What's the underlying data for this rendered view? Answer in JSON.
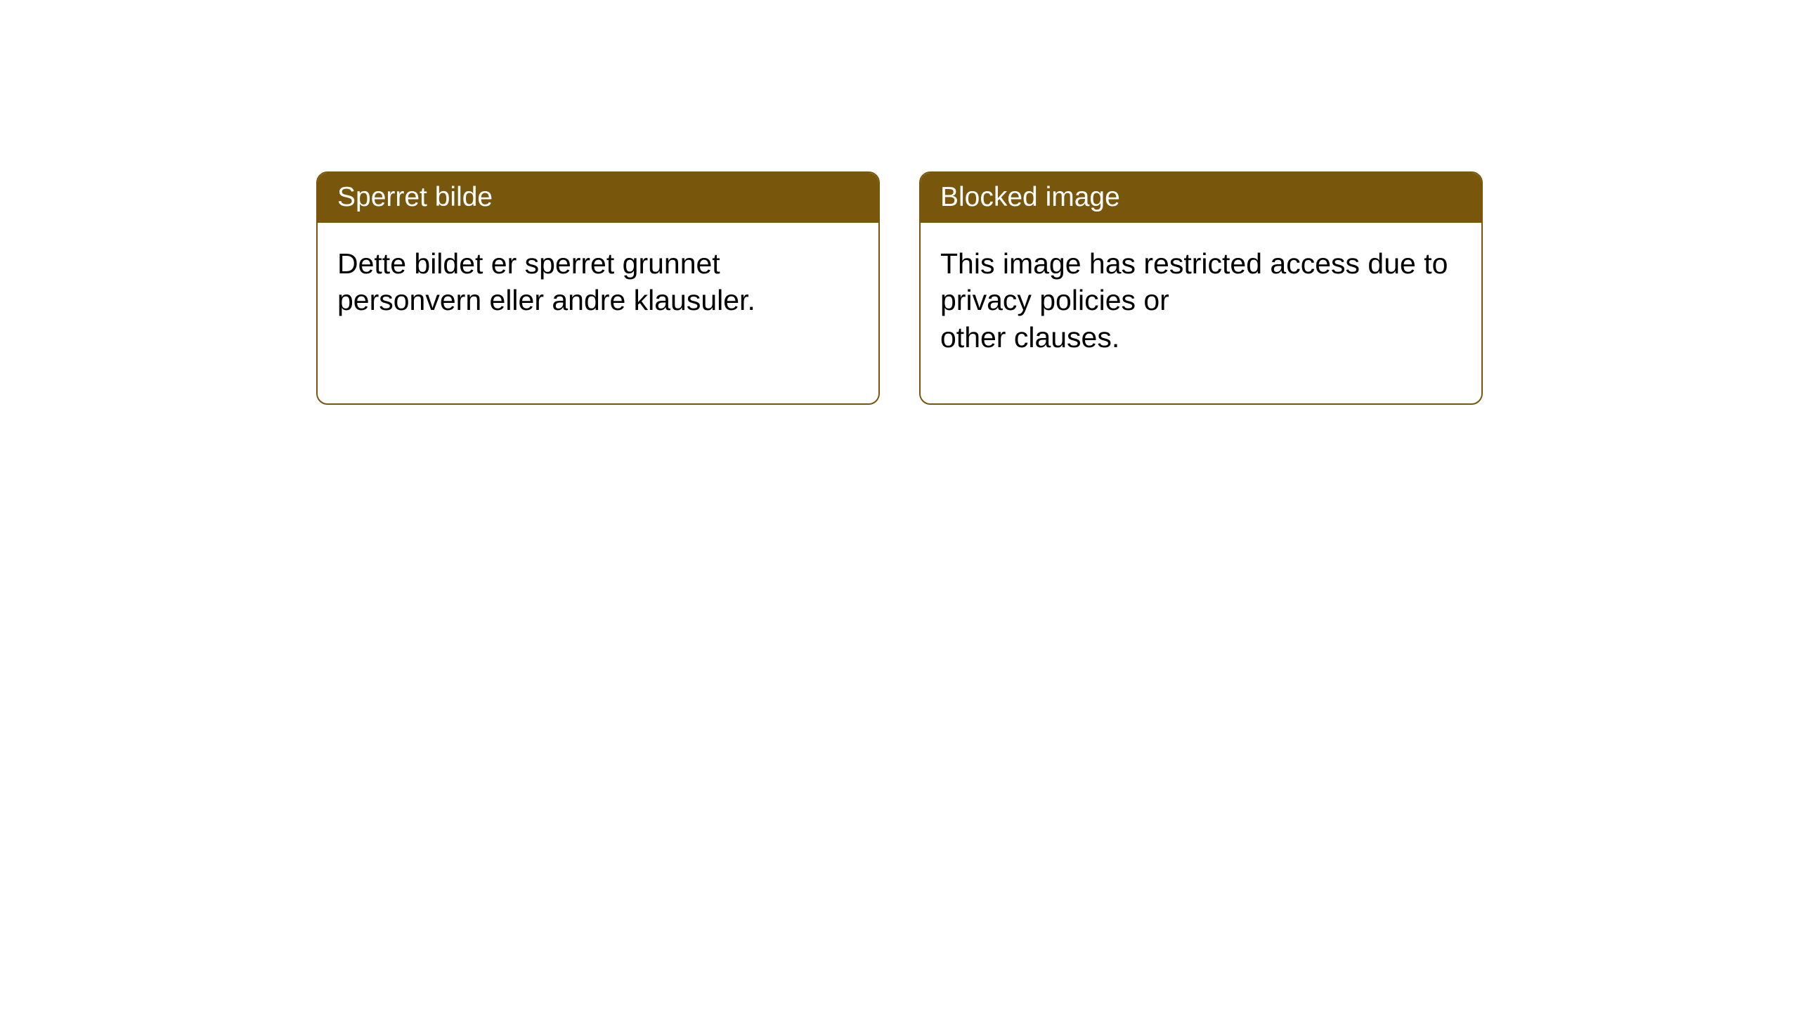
{
  "cards": [
    {
      "title": "Sperret bilde",
      "body": "Dette bildet er sperret grunnet personvern eller andre klausuler."
    },
    {
      "title": "Blocked image",
      "body": "This image has restricted access due to privacy policies or\nother clauses."
    }
  ],
  "styling": {
    "header_bg": "#78570c",
    "header_text_color": "#ffffff",
    "border_color": "#78570c",
    "body_bg": "#ffffff",
    "body_text_color": "#000000",
    "border_radius": 16,
    "header_fontsize": 39,
    "body_fontsize": 41
  }
}
